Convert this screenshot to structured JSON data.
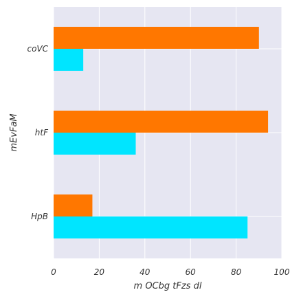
{
  "chart_data": {
    "type": "bar",
    "orientation": "horizontal",
    "title": "",
    "xlabel": "m OCbg tFzs dl",
    "ylabel": "mEvFaM",
    "categories": [
      "HpB",
      "htF",
      "coVC"
    ],
    "series": [
      {
        "color": "#00e5ff",
        "values": [
          85,
          36,
          13
        ]
      },
      {
        "color": "#ff7700",
        "values": [
          17,
          94,
          90
        ]
      }
    ],
    "xlim": [
      0,
      100
    ],
    "xticks": [
      "0",
      "20",
      "40",
      "60",
      "80",
      "100"
    ],
    "grid": true,
    "legend": "none",
    "background": "#e6e6f2"
  }
}
